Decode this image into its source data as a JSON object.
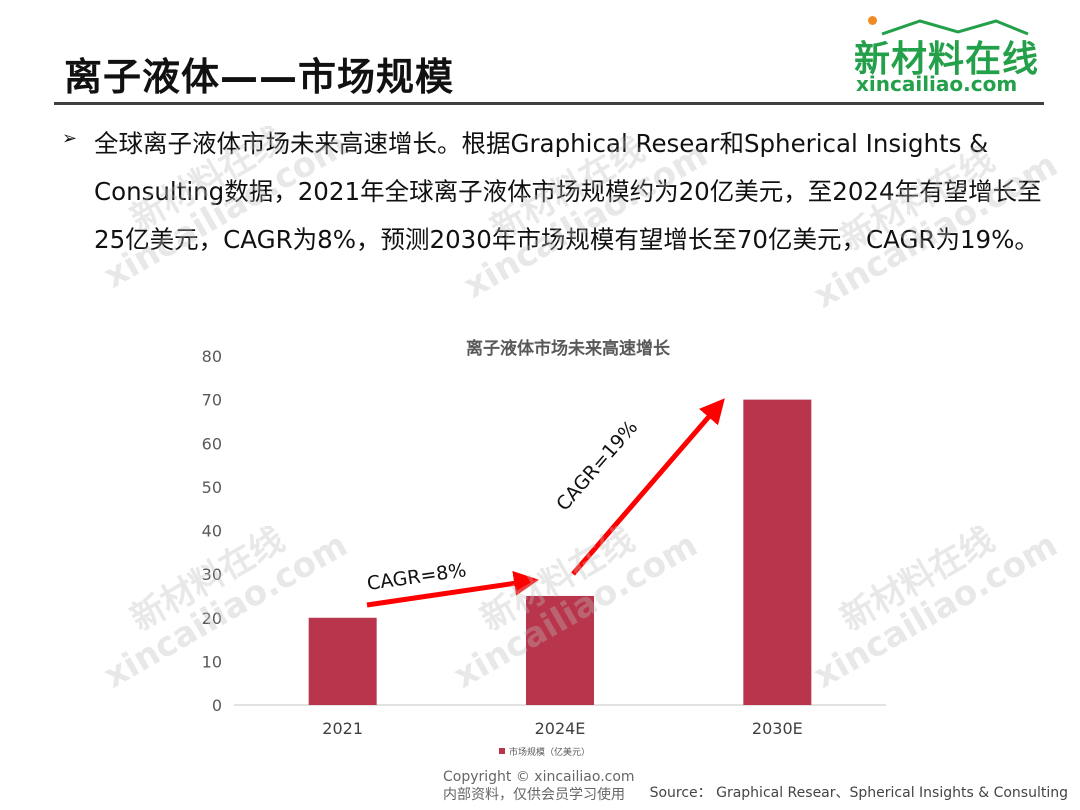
{
  "header": {
    "title": "离子液体——市场规模"
  },
  "logo": {
    "cn": "新材料在线",
    "en": "xincailiao.com"
  },
  "bullet": {
    "marker": "➢",
    "text": "全球离子液体市场未来高速增长。根据Graphical Resear和Spherical Insights & Consulting数据，2021年全球离子液体市场规模约为20亿美元，至2024年有望增长至25亿美元，CAGR为8%，预测2030年市场规模有望增长至70亿美元，CAGR为19%。"
  },
  "chart_data": {
    "type": "bar",
    "title": "离子液体市场未来高速增长",
    "categories": [
      "2021",
      "2024E",
      "2030E"
    ],
    "series": [
      {
        "name": "市场规模（亿美元）",
        "values": [
          20,
          25,
          70
        ],
        "color": "#b8354b"
      }
    ],
    "ylim": [
      0,
      80
    ],
    "yticks": [
      0,
      10,
      20,
      30,
      40,
      50,
      60,
      70,
      80
    ],
    "xlabel": "",
    "ylabel": "",
    "grid": false,
    "legend_position": "bottom",
    "annotations": [
      {
        "text": "CAGR=8%",
        "from": "2021",
        "to": "2024E"
      },
      {
        "text": "CAGR=19%",
        "from": "2024E",
        "to": "2030E"
      }
    ],
    "arrow_color": "#ff0000"
  },
  "footer": {
    "copyright_line1": "Copyright © xincailiao.com",
    "copyright_line2": "内部资料，仅供会员学习使用",
    "source": "Source： Graphical Resear、Spherical Insights & Consulting"
  },
  "watermark": {
    "cn": "新材料在线",
    "en": "xincailiao.com"
  }
}
